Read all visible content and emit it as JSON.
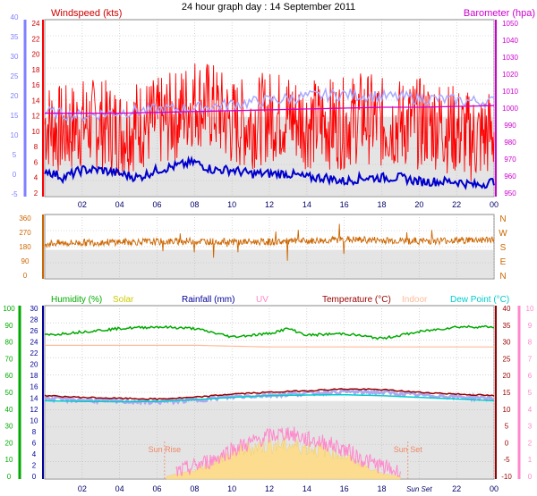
{
  "title": "24 hour graph day : 14 September 2011",
  "colors": {
    "wind_axis": "#8080ff",
    "wind_label": "#cc0000",
    "baro": "#cc00cc",
    "wind_red": "#ff0000",
    "wind_blue": "#0000cc",
    "gust_light": "#aaaaff",
    "dir": "#cc6600",
    "dir_labels": "#cc6600",
    "humidity": "#00aa00",
    "solar": "#cccc00",
    "rain": "#000099",
    "uv": "#ff88cc",
    "temp": "#990000",
    "indoor": "#ffbb99",
    "dew": "#00cccc",
    "sun_label": "#ee8866"
  },
  "chart_data": [
    {
      "type": "line",
      "id": "wind_baro",
      "left_label": "Windspeed (kts)",
      "right_label": "Barometer (hpa)",
      "x_ticks": [
        "02",
        "04",
        "06",
        "08",
        "10",
        "12",
        "14",
        "16",
        "18",
        "20",
        "22",
        "00"
      ],
      "x_range_hours": [
        0,
        24
      ],
      "left_outer_ticks": [
        -5,
        0,
        5,
        10,
        15,
        20,
        25,
        30,
        35,
        40
      ],
      "left_inner_ticks": [
        2,
        4,
        6,
        8,
        10,
        12,
        14,
        16,
        18,
        20,
        22,
        24
      ],
      "y_range_kts": [
        2,
        24
      ],
      "right_ticks": [
        950,
        960,
        970,
        980,
        990,
        1000,
        1010,
        1020,
        1030,
        1040,
        1050
      ],
      "y_range_hpa": [
        950,
        1050
      ],
      "series": [
        {
          "name": "Windspeed",
          "color": "#ff0000",
          "x": [
            0,
            1,
            2,
            3,
            4,
            5,
            6,
            7,
            8,
            9,
            10,
            11,
            12,
            13,
            14,
            15,
            16,
            17,
            18,
            19,
            20,
            21,
            22,
            23,
            24
          ],
          "values": [
            11,
            10,
            11,
            11,
            10,
            11,
            11,
            12,
            14,
            13,
            11,
            11,
            12,
            12,
            11,
            11,
            11,
            12,
            11,
            11,
            11,
            11,
            10,
            9,
            10
          ]
        },
        {
          "name": "Average",
          "color": "#0000cc",
          "x": [
            0,
            1,
            2,
            3,
            4,
            5,
            6,
            7,
            8,
            9,
            10,
            11,
            12,
            13,
            14,
            15,
            16,
            17,
            18,
            19,
            20,
            21,
            22,
            23,
            24
          ],
          "values": [
            5,
            4,
            5,
            5,
            4.5,
            4,
            5,
            5.5,
            6,
            5,
            5,
            4.5,
            4.5,
            4.5,
            4,
            4,
            3.5,
            4,
            4,
            4,
            3.5,
            3.5,
            3.5,
            3,
            3.5
          ]
        },
        {
          "name": "Barometer",
          "color": "#cc00cc",
          "x": [
            0,
            2,
            4,
            6,
            8,
            10,
            12,
            14,
            16,
            18,
            20,
            22,
            24
          ],
          "values": [
            997,
            997,
            997,
            997.5,
            998,
            998.5,
            999,
            999.5,
            1000,
            1000.5,
            1000.5,
            1001,
            1001.5
          ]
        },
        {
          "name": "Gust",
          "color": "#aaaaff",
          "x": [
            0,
            2,
            4,
            6,
            8,
            10,
            12,
            14,
            16,
            18,
            20,
            22,
            24
          ],
          "values": [
            12.5,
            12,
            12.5,
            12.8,
            13,
            13.5,
            14,
            14.5,
            14.8,
            14.5,
            14.3,
            14,
            13.8
          ]
        }
      ]
    },
    {
      "type": "scatter",
      "id": "wind_direction",
      "x_range_hours": [
        0,
        24
      ],
      "left_ticks": [
        0,
        90,
        180,
        270,
        360
      ],
      "y_range_deg": [
        0,
        360
      ],
      "right_labels": [
        "N",
        "W",
        "S",
        "E",
        "N"
      ],
      "series": [
        {
          "name": "Direction",
          "color": "#cc6600",
          "x": [
            0,
            2,
            4,
            6,
            8,
            10,
            12,
            14,
            16,
            18,
            20,
            22,
            24
          ],
          "values": [
            200,
            205,
            210,
            210,
            215,
            210,
            210,
            215,
            225,
            220,
            215,
            220,
            225
          ]
        }
      ]
    },
    {
      "type": "line",
      "id": "temp_hum",
      "headers": [
        "Humidity (%)",
        "Solar",
        "Rainfall (mm)",
        "UV",
        "Temperature (°C)",
        "Indoor",
        "Dew Point (°C)"
      ],
      "x_ticks": [
        "02",
        "04",
        "06",
        "08",
        "10",
        "12",
        "14",
        "16",
        "18",
        "Sun Set",
        "22",
        "00"
      ],
      "x_range_hours": [
        0,
        24
      ],
      "humidity_ticks": [
        0,
        10,
        20,
        30,
        40,
        50,
        60,
        70,
        80,
        90,
        100
      ],
      "rain_ticks": [
        0,
        2,
        4,
        6,
        8,
        10,
        12,
        14,
        16,
        18,
        20,
        22,
        24,
        26,
        28,
        30
      ],
      "temp_ticks": [
        -10,
        -5,
        0,
        5,
        10,
        15,
        20,
        25,
        30,
        35,
        40
      ],
      "uv_ticks": [
        0,
        1,
        2,
        3,
        4,
        5,
        6,
        7,
        8,
        9,
        10
      ],
      "sun_labels": [
        "Sun Rise",
        "Sun Set"
      ],
      "sun_times_hours": [
        6.4,
        19.4
      ],
      "series": [
        {
          "name": "Humidity",
          "color": "#00aa00",
          "x": [
            0,
            2,
            4,
            6,
            8,
            10,
            12,
            13,
            14,
            16,
            18,
            20,
            22,
            24
          ],
          "values": [
            84,
            86,
            88,
            89,
            88,
            83,
            85,
            88,
            84,
            85,
            82,
            86,
            89,
            89
          ]
        },
        {
          "name": "Indoor",
          "color": "#ffbb99",
          "x": [
            0,
            4,
            8,
            12,
            16,
            20,
            24
          ],
          "values": [
            29,
            29,
            29,
            28.5,
            28.5,
            28.5,
            28.5
          ]
        },
        {
          "name": "Temperature",
          "color": "#990000",
          "x": [
            0,
            2,
            4,
            6,
            8,
            10,
            12,
            14,
            16,
            18,
            20,
            22,
            24
          ],
          "values": [
            14,
            13.5,
            13.2,
            13,
            13.5,
            14.5,
            15,
            15.5,
            16,
            15.8,
            15,
            14.5,
            14
          ]
        },
        {
          "name": "Dew Point",
          "color": "#00cccc",
          "x": [
            0,
            2,
            4,
            6,
            8,
            10,
            12,
            14,
            16,
            18,
            20,
            22,
            24
          ],
          "values": [
            12.5,
            12.3,
            12.2,
            12.3,
            12.8,
            13.5,
            14,
            14.2,
            14.3,
            14,
            13.5,
            13,
            12.5
          ]
        },
        {
          "name": "Solar",
          "color": "#cccc00",
          "x": [
            6.5,
            8,
            9,
            10,
            11,
            12,
            13,
            14,
            15,
            16,
            17,
            18,
            19
          ],
          "values": [
            0,
            2,
            5,
            8,
            10,
            11,
            11,
            10,
            9,
            7,
            4,
            1,
            0
          ]
        },
        {
          "name": "UV",
          "color": "#ff88cc",
          "x": [
            7,
            8,
            9,
            10,
            11,
            12,
            13,
            14,
            15,
            16,
            17,
            18,
            19
          ],
          "values": [
            -9,
            -7,
            -5,
            -2,
            0,
            2,
            3,
            1,
            0,
            -2,
            -5,
            -7,
            -9
          ]
        }
      ]
    }
  ]
}
